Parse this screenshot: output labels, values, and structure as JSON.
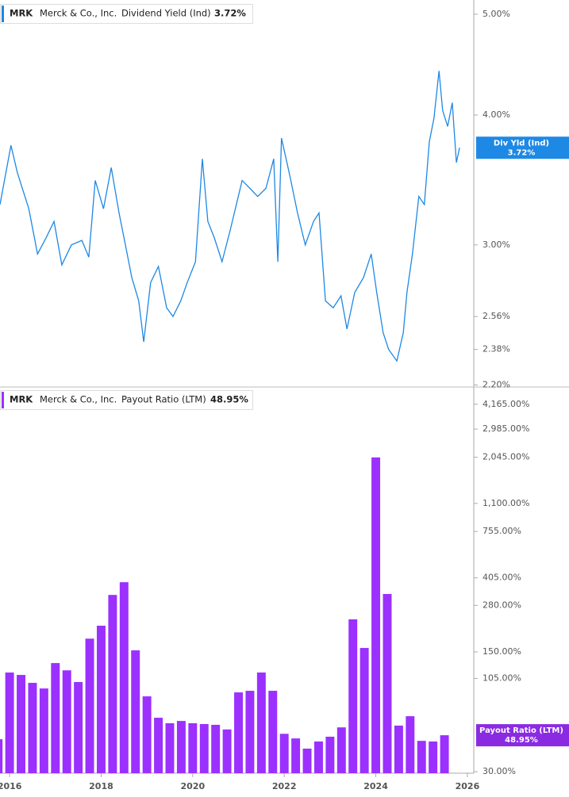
{
  "chart_data": [
    {
      "type": "line",
      "ticker": "MRK",
      "company": "Merck & Co., Inc.",
      "badge_label": "Div Yld (Ind)",
      "current": {
        "value": 3.72,
        "label": "3.72%"
      },
      "log_scale": true,
      "xlim": [
        2015.79,
        2026.14
      ],
      "ylim": [
        2.19,
        5.16
      ],
      "yticks": [
        {
          "value": 5,
          "label": "5.00%"
        },
        {
          "value": 4,
          "label": "4.00%"
        },
        {
          "value": 3,
          "label": "3.00%"
        },
        {
          "value": 2.56,
          "label": "2.56%"
        },
        {
          "value": 2.38,
          "label": "2.38%"
        },
        {
          "value": 2.2,
          "label": "2.20%"
        }
      ],
      "x": [
        2015.79,
        2016.03,
        2016.17,
        2016.42,
        2016.61,
        2016.8,
        2016.97,
        2017.14,
        2017.35,
        2017.58,
        2017.73,
        2017.87,
        2018.05,
        2018.22,
        2018.39,
        2018.53,
        2018.67,
        2018.82,
        2018.93,
        2019.08,
        2019.25,
        2019.43,
        2019.57,
        2019.74,
        2019.88,
        2020.06,
        2020.21,
        2020.33,
        2020.47,
        2020.64,
        2020.82,
        2021.08,
        2021.25,
        2021.42,
        2021.6,
        2021.77,
        2021.86,
        2021.94,
        2022.12,
        2022.29,
        2022.46,
        2022.64,
        2022.76,
        2022.9,
        2023.07,
        2023.24,
        2023.37,
        2023.54,
        2023.73,
        2023.9,
        2024.02,
        2024.16,
        2024.28,
        2024.46,
        2024.6,
        2024.68,
        2024.8,
        2024.94,
        2025.06,
        2025.17,
        2025.27,
        2025.38,
        2025.46,
        2025.57,
        2025.67,
        2025.76,
        2025.83
      ],
      "series": [
        {
          "name": "Dividend Yield (Ind)",
          "color": "#1e88e5",
          "values": [
            3.28,
            3.74,
            3.52,
            3.25,
            2.94,
            3.05,
            3.16,
            2.87,
            3.0,
            3.03,
            2.92,
            3.46,
            3.25,
            3.56,
            3.22,
            3.0,
            2.79,
            2.65,
            2.42,
            2.76,
            2.86,
            2.61,
            2.56,
            2.65,
            2.76,
            2.89,
            3.63,
            3.16,
            3.05,
            2.89,
            3.1,
            3.46,
            3.4,
            3.34,
            3.4,
            3.63,
            2.89,
            3.8,
            3.5,
            3.22,
            3.0,
            3.16,
            3.22,
            2.65,
            2.61,
            2.68,
            2.49,
            2.7,
            2.79,
            2.94,
            2.7,
            2.47,
            2.38,
            2.32,
            2.47,
            2.7,
            2.94,
            3.34,
            3.28,
            3.77,
            3.97,
            4.41,
            4.04,
            3.9,
            4.11,
            3.6,
            3.72
          ]
        }
      ]
    },
    {
      "type": "bar",
      "ticker": "MRK",
      "company": "Merck & Co., Inc.",
      "current": {
        "value": 48.95,
        "label": "48.95%"
      },
      "log_scale": true,
      "xlim": [
        2015.79,
        2026.14
      ],
      "ylim": [
        29.4,
        5140
      ],
      "xticks": [
        2016,
        2018,
        2020,
        2022,
        2024,
        2026
      ],
      "yticks": [
        {
          "value": 4165,
          "label": "4,165.00%"
        },
        {
          "value": 2985,
          "label": "2,985.00%"
        },
        {
          "value": 2045,
          "label": "2,045.00%"
        },
        {
          "value": 1100,
          "label": "1,100.00%"
        },
        {
          "value": 755,
          "label": "755.00%"
        },
        {
          "value": 405,
          "label": "405.00%"
        },
        {
          "value": 280,
          "label": "280.00%"
        },
        {
          "value": 150,
          "label": "150.00%"
        },
        {
          "value": 105,
          "label": "105.00%"
        },
        {
          "value": 30,
          "label": "30.00%"
        }
      ],
      "x": [
        2015.75,
        2016.0,
        2016.25,
        2016.5,
        2016.75,
        2017.0,
        2017.25,
        2017.5,
        2017.75,
        2018.0,
        2018.25,
        2018.5,
        2018.75,
        2019.0,
        2019.25,
        2019.5,
        2019.75,
        2020.0,
        2020.25,
        2020.5,
        2020.75,
        2021.0,
        2021.25,
        2021.5,
        2021.75,
        2022.0,
        2022.25,
        2022.5,
        2022.75,
        2023.0,
        2023.25,
        2023.5,
        2023.75,
        2024.0,
        2024.25,
        2024.5,
        2024.75,
        2025.0,
        2025.25,
        2025.5
      ],
      "series": [
        {
          "name": "Payout Ratio (LTM)",
          "color": "#9b30ff",
          "values": [
            46.4,
            113.6,
            110,
            98.9,
            91.7,
            129,
            117,
            100,
            179,
            213,
            322,
            382,
            153,
            82.5,
            61.9,
            57.5,
            59.3,
            57.5,
            56.9,
            56.3,
            52.9,
            87,
            88.9,
            113.6,
            88.9,
            49.9,
            46.9,
            40.9,
            45,
            48,
            54.4,
            232,
            158,
            2040,
            326,
            55.7,
            63.2,
            45.4,
            45,
            48.95
          ]
        }
      ]
    }
  ]
}
